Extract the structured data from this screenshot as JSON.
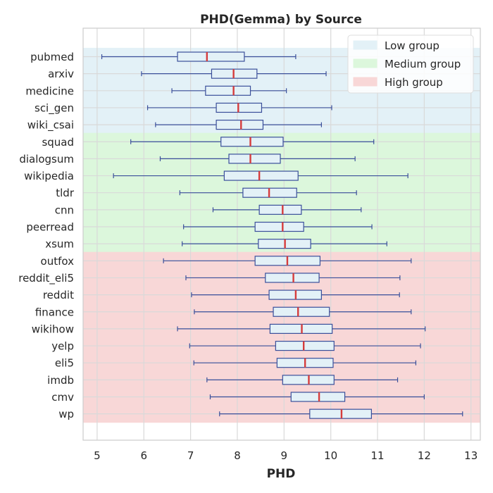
{
  "chart_data": {
    "type": "boxplot",
    "orientation": "horizontal",
    "title": "PHD(Gemma) by Source",
    "xlabel": "PHD",
    "ylabel": "",
    "xlim": [
      4.7,
      13.2
    ],
    "xticks": [
      5,
      6,
      7,
      8,
      9,
      10,
      11,
      12,
      13
    ],
    "grid": true,
    "legend_position": "top-right",
    "colors": {
      "box_fill": "#e3f1f7",
      "box_edge": "#3a4f9a",
      "median": "#d63c3c",
      "grid": "#d9d9d9"
    },
    "groups": [
      {
        "name": "Low group",
        "color": "#e3f1f7",
        "sources": [
          "pubmed",
          "arxiv",
          "medicine",
          "sci_gen",
          "wiki_csai"
        ]
      },
      {
        "name": "Medium group",
        "color": "#dcf7dc",
        "sources": [
          "squad",
          "dialogsum",
          "wikipedia",
          "tldr",
          "cnn",
          "peerread",
          "xsum"
        ]
      },
      {
        "name": "High group",
        "color": "#f8d7d7",
        "sources": [
          "outfox",
          "reddit_eli5",
          "reddit",
          "finance",
          "wikihow",
          "yelp",
          "eli5",
          "imdb",
          "cmv",
          "wp"
        ]
      }
    ],
    "series": [
      {
        "name": "pubmed",
        "whislo": 5.1,
        "q1": 6.72,
        "med": 7.35,
        "q3": 8.15,
        "whishi": 9.25
      },
      {
        "name": "arxiv",
        "whislo": 5.95,
        "q1": 7.45,
        "med": 7.92,
        "q3": 8.42,
        "whishi": 9.9
      },
      {
        "name": "medicine",
        "whislo": 6.6,
        "q1": 7.32,
        "med": 7.92,
        "q3": 8.28,
        "whishi": 9.05
      },
      {
        "name": "sci_gen",
        "whislo": 6.08,
        "q1": 7.55,
        "med": 8.02,
        "q3": 8.52,
        "whishi": 10.02
      },
      {
        "name": "wiki_csai",
        "whislo": 6.25,
        "q1": 7.55,
        "med": 8.08,
        "q3": 8.55,
        "whishi": 9.8
      },
      {
        "name": "squad",
        "whislo": 5.72,
        "q1": 7.65,
        "med": 8.28,
        "q3": 8.98,
        "whishi": 10.92
      },
      {
        "name": "dialogsum",
        "whislo": 6.35,
        "q1": 7.82,
        "med": 8.28,
        "q3": 8.92,
        "whishi": 10.52
      },
      {
        "name": "wikipedia",
        "whislo": 5.35,
        "q1": 7.72,
        "med": 8.47,
        "q3": 9.3,
        "whishi": 11.65
      },
      {
        "name": "tldr",
        "whislo": 6.77,
        "q1": 8.12,
        "med": 8.68,
        "q3": 9.27,
        "whishi": 10.55
      },
      {
        "name": "cnn",
        "whislo": 7.48,
        "q1": 8.47,
        "med": 8.97,
        "q3": 9.37,
        "whishi": 10.65
      },
      {
        "name": "peerread",
        "whislo": 6.85,
        "q1": 8.38,
        "med": 8.97,
        "q3": 9.42,
        "whishi": 10.88
      },
      {
        "name": "xsum",
        "whislo": 6.82,
        "q1": 8.45,
        "med": 9.02,
        "q3": 9.57,
        "whishi": 11.2
      },
      {
        "name": "outfox",
        "whislo": 6.42,
        "q1": 8.38,
        "med": 9.07,
        "q3": 9.77,
        "whishi": 11.72
      },
      {
        "name": "reddit_eli5",
        "whislo": 6.9,
        "q1": 8.6,
        "med": 9.2,
        "q3": 9.75,
        "whishi": 11.48
      },
      {
        "name": "reddit",
        "whislo": 7.02,
        "q1": 8.68,
        "med": 9.25,
        "q3": 9.8,
        "whishi": 11.47
      },
      {
        "name": "finance",
        "whislo": 7.08,
        "q1": 8.77,
        "med": 9.3,
        "q3": 9.97,
        "whishi": 11.72
      },
      {
        "name": "wikihow",
        "whislo": 6.72,
        "q1": 8.7,
        "med": 9.38,
        "q3": 10.03,
        "whishi": 12.02
      },
      {
        "name": "yelp",
        "whislo": 6.98,
        "q1": 8.82,
        "med": 9.42,
        "q3": 10.07,
        "whishi": 11.92
      },
      {
        "name": "eli5",
        "whislo": 7.07,
        "q1": 8.85,
        "med": 9.45,
        "q3": 10.05,
        "whishi": 11.82
      },
      {
        "name": "imdb",
        "whislo": 7.35,
        "q1": 8.97,
        "med": 9.53,
        "q3": 10.07,
        "whishi": 11.43
      },
      {
        "name": "cmv",
        "whislo": 7.42,
        "q1": 9.15,
        "med": 9.75,
        "q3": 10.3,
        "whishi": 12.0
      },
      {
        "name": "wp",
        "whislo": 7.62,
        "q1": 9.55,
        "med": 10.23,
        "q3": 10.87,
        "whishi": 12.82
      }
    ]
  }
}
